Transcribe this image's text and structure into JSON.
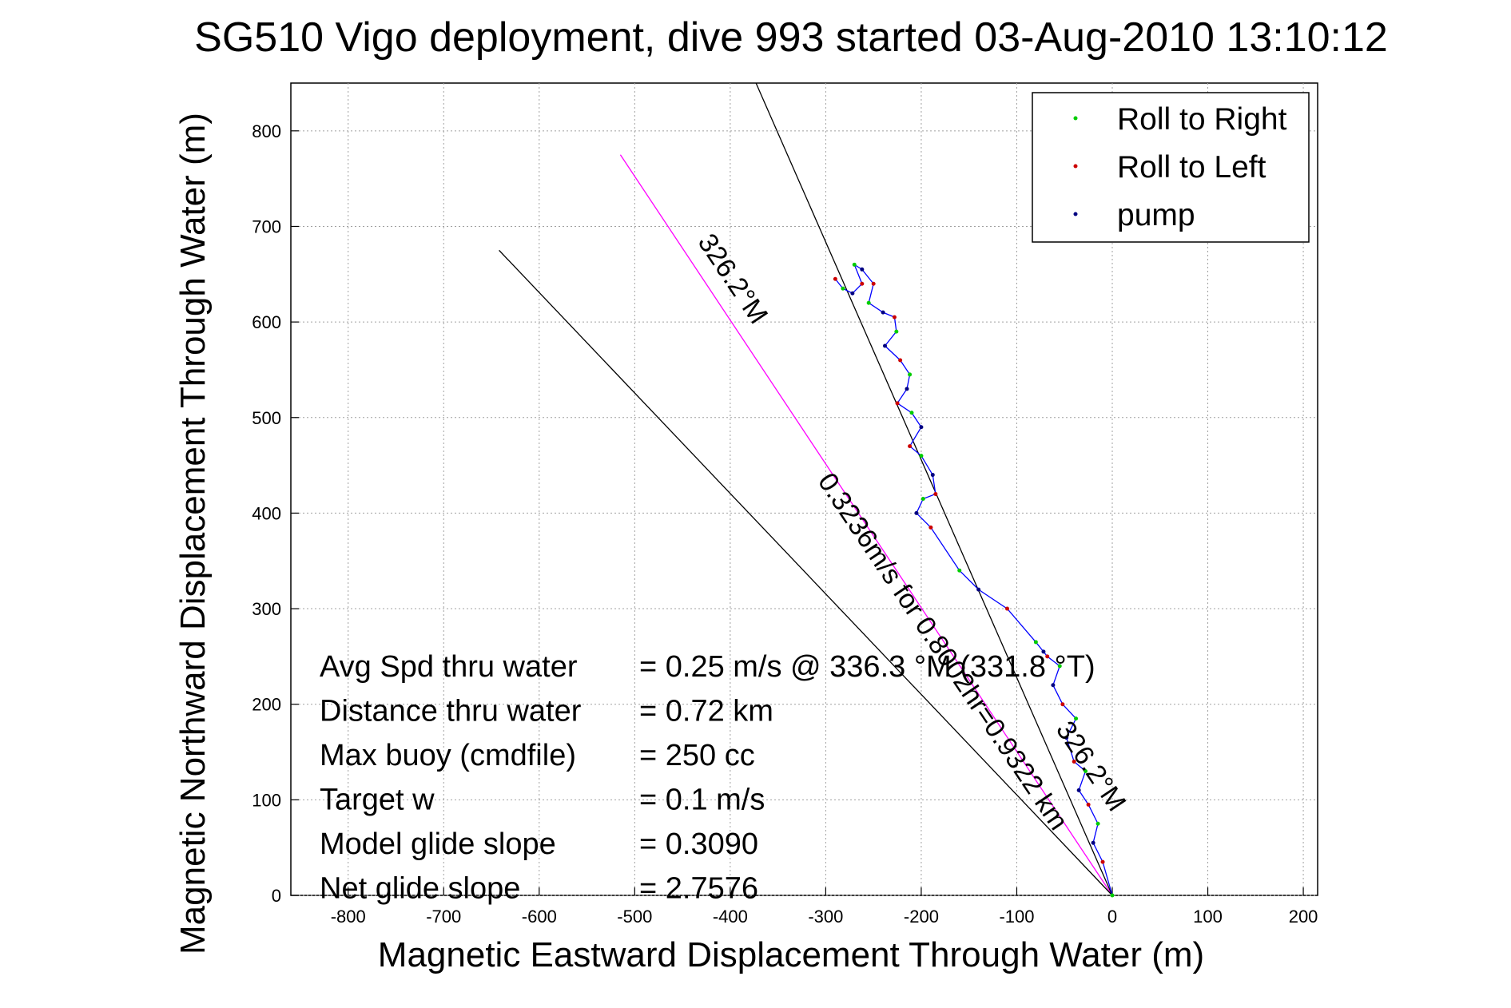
{
  "chart_data": {
    "type": "line",
    "title": "SG510 Vigo deployment, dive 993 started 03-Aug-2010 13:10:12",
    "xlabel": "Magnetic Eastward Displacement Through Water (m)",
    "ylabel": "Magnetic Northward Displacement Through Water (m)",
    "xlim": [
      -860,
      215
    ],
    "ylim": [
      0,
      850
    ],
    "xticks": [
      -800,
      -700,
      -600,
      -500,
      -400,
      -300,
      -200,
      -100,
      0,
      100,
      200
    ],
    "yticks": [
      0,
      100,
      200,
      300,
      400,
      500,
      600,
      700,
      800
    ],
    "grid": true,
    "legend": {
      "position": "top-right",
      "entries": [
        {
          "name": "Roll to Right",
          "color": "#00cc00"
        },
        {
          "name": "Roll to Left",
          "color": "#cc0000"
        },
        {
          "name": "pump",
          "color": "#000080"
        }
      ]
    },
    "track": {
      "color": "#0000ff",
      "x": [
        0,
        -10,
        -20,
        -15,
        -25,
        -35,
        -28,
        -40,
        -48,
        -38,
        -52,
        -62,
        -55,
        -68,
        -72,
        -80,
        -110,
        -140,
        -160,
        -190,
        -205,
        -198,
        -185,
        -188,
        -200,
        -212,
        -200,
        -210,
        -225,
        -215,
        -212,
        -222,
        -238,
        -226,
        -228,
        -240,
        -255,
        -250,
        -262,
        -270,
        -262,
        -272,
        -282,
        -290
      ],
      "y": [
        0,
        35,
        55,
        75,
        95,
        110,
        130,
        140,
        165,
        185,
        200,
        220,
        240,
        250,
        255,
        265,
        300,
        320,
        340,
        385,
        400,
        415,
        420,
        440,
        460,
        470,
        490,
        505,
        515,
        530,
        545,
        560,
        575,
        590,
        605,
        610,
        620,
        640,
        655,
        660,
        640,
        630,
        635,
        645
      ]
    },
    "lines": [
      {
        "name": "heading-line-326.2",
        "color": "#ff00ff",
        "x": [
          0,
          -515
        ],
        "y": [
          0,
          775
        ]
      },
      {
        "name": "reference-line-A",
        "color": "#000000",
        "x": [
          0,
          -373
        ],
        "y": [
          0,
          850
        ]
      },
      {
        "name": "reference-line-B",
        "color": "#000000",
        "x": [
          0,
          -642
        ],
        "y": [
          0,
          675
        ]
      }
    ],
    "annotations": [
      {
        "text": "326.2°M",
        "x": -405,
        "y": 640,
        "angle": 56
      },
      {
        "text": "0.3236m/s for 0.8002hr=0.9322 km",
        "x": -185,
        "y": 250,
        "angle": 56
      },
      {
        "text": "326.2°M",
        "x": -30,
        "y": 130,
        "angle": 56
      }
    ],
    "stats": [
      {
        "label": "Avg Spd thru water",
        "value": "=  0.25 m/s @ 336.3 °M (331.8 °T)"
      },
      {
        "label": "Distance thru water",
        "value": "=  0.72 km"
      },
      {
        "label": "Max buoy (cmdfile)",
        "value": "= 250 cc"
      },
      {
        "label": "Target w",
        "value": "= 0.1 m/s"
      },
      {
        "label": "Model glide slope",
        "value": "= 0.3090"
      },
      {
        "label": "Net glide slope",
        "value": "= 2.7576"
      }
    ]
  }
}
